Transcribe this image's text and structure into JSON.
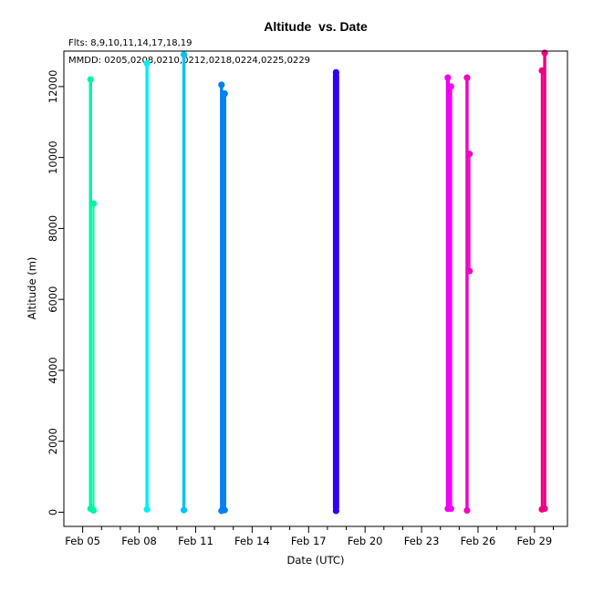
{
  "chart_data": {
    "type": "scatter",
    "title": "Altitude  vs. Date",
    "xlabel": "Date (UTC)",
    "ylabel": "Altitude (m)",
    "annotations": [
      "Flts: 8,9,10,11,14,17,18,19",
      "MMDD: 0205,0208,0210,0212,0218,0224,0225,0229"
    ],
    "x_ticks": [
      "Feb 05",
      "Feb 08",
      "Feb 11",
      "Feb 14",
      "Feb 17",
      "Feb 20",
      "Feb 23",
      "Feb 26",
      "Feb 29"
    ],
    "y_ticks": [
      0,
      2000,
      4000,
      6000,
      8000,
      10000,
      12000
    ],
    "xlim": [
      "2016-02-04 00:00",
      "2016-03-01 18:00"
    ],
    "ylim": [
      -400,
      13000
    ],
    "grid": false,
    "series": [
      {
        "color": "#00f5a3",
        "x_start": "2016-02-05 08:00",
        "x_end": "2016-02-05 15:00",
        "min": 100,
        "max": 12200,
        "segments": [
          [
            "2016-02-05 08:00",
            "2016-02-05 12:00",
            100,
            12200
          ],
          [
            "2016-02-05 12:30",
            "2016-02-05 15:00",
            50,
            8700
          ]
        ]
      },
      {
        "color": "#00f0f0",
        "x_start": "2016-02-08 08:00",
        "x_end": "2016-02-08 12:00",
        "min": 80,
        "max": 12650,
        "segments": [
          [
            "2016-02-08 08:00",
            "2016-02-08 12:00",
            80,
            12650
          ]
        ]
      },
      {
        "color": "#00c3f5",
        "x_start": "2016-02-10 07:00",
        "x_end": "2016-02-10 11:00",
        "min": 60,
        "max": 12900,
        "segments": [
          [
            "2016-02-10 07:00",
            "2016-02-10 11:00",
            60,
            12900
          ]
        ]
      },
      {
        "color": "#0080f5",
        "x_start": "2016-02-12 07:00",
        "x_end": "2016-02-12 15:00",
        "min": 40,
        "max": 12050,
        "segments": [
          [
            "2016-02-12 07:00",
            "2016-02-12 11:00",
            40,
            12050
          ],
          [
            "2016-02-12 11:00",
            "2016-02-12 15:00",
            60,
            11800
          ]
        ]
      },
      {
        "color": "#3000f5",
        "x_start": "2016-02-18 07:00",
        "x_end": "2016-02-18 15:00",
        "min": 40,
        "max": 12400,
        "segments": [
          [
            "2016-02-18 07:00",
            "2016-02-18 15:00",
            40,
            12400
          ]
        ]
      },
      {
        "color": "#f000f0",
        "x_start": "2016-02-24 07:00",
        "x_end": "2016-02-24 15:00",
        "min": 100,
        "max": 12250,
        "segments": [
          [
            "2016-02-24 07:00",
            "2016-02-24 12:00",
            100,
            12250
          ],
          [
            "2016-02-24 12:00",
            "2016-02-24 15:00",
            100,
            12000
          ]
        ]
      },
      {
        "color": "#f000c0",
        "x_start": "2016-02-25 08:00",
        "x_end": "2016-02-25 14:00",
        "min": 50,
        "max": 12250,
        "segments": [
          [
            "2016-02-25 08:00",
            "2016-02-25 12:00",
            50,
            12250
          ],
          [
            "2016-02-25 12:00",
            "2016-02-25 14:00",
            6800,
            10100
          ]
        ]
      },
      {
        "color": "#f00080",
        "x_start": "2016-02-29 08:00",
        "x_end": "2016-02-29 15:00",
        "min": 80,
        "max": 12950,
        "segments": [
          [
            "2016-02-29 08:00",
            "2016-02-29 11:00",
            80,
            12450
          ],
          [
            "2016-02-29 11:00",
            "2016-02-29 15:00",
            100,
            12950
          ]
        ]
      }
    ]
  }
}
